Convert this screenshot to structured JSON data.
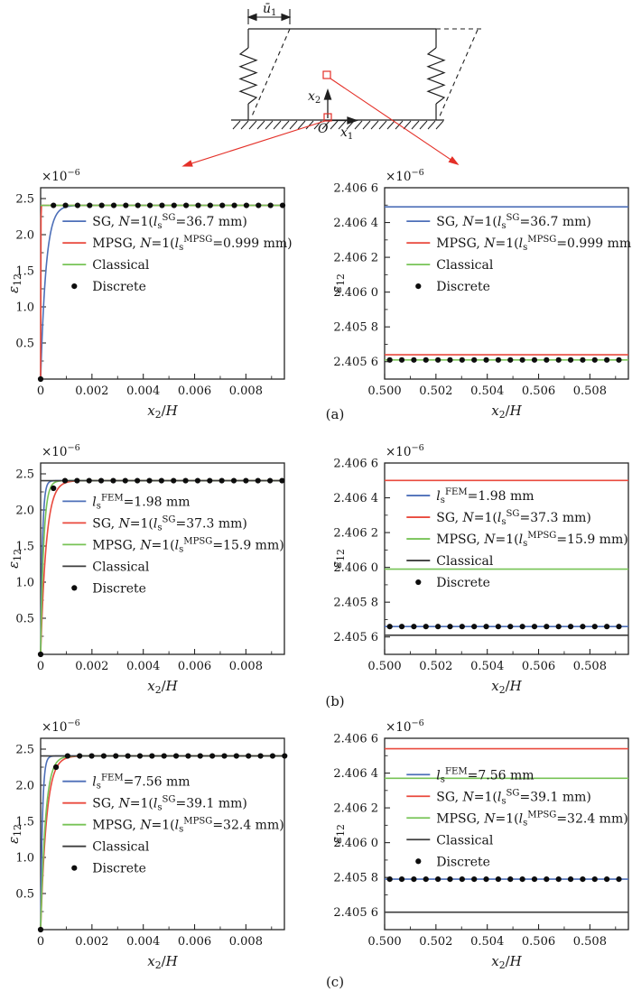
{
  "figure": {
    "captions": [
      "(a)",
      "(b)",
      "(c)"
    ],
    "colors": {
      "blue": "#4d6fb8",
      "red": "#e9493d",
      "green": "#77c356",
      "black": "#3d3d3d",
      "dot": "#0d0d0d",
      "axis": "#262626",
      "annotation_red": "#e43028"
    }
  },
  "schematic": {
    "labels": {
      "u1": "_ū_~1~",
      "x2": "_x_~2~",
      "x1": "_x_~1~",
      "origin": "_O_"
    }
  },
  "chart_data": [
    {
      "id": "a-left",
      "type": "line",
      "y_scale": "1e-6",
      "exponent": "×10^−6^",
      "xlabel": "_x_~2~/_H_",
      "ylabel": "_ε_~12~",
      "xlim": [
        0,
        0.0095
      ],
      "ylim": [
        0,
        2.65
      ],
      "xticks": [
        {
          "v": 0,
          "l": "0"
        },
        {
          "v": 0.002,
          "l": "0.002"
        },
        {
          "v": 0.004,
          "l": "0.004"
        },
        {
          "v": 0.006,
          "l": "0.006"
        },
        {
          "v": 0.008,
          "l": "0.008"
        }
      ],
      "yticks": [
        {
          "v": 0.5,
          "l": "0.5"
        },
        {
          "v": 1.0,
          "l": "1.0"
        },
        {
          "v": 1.5,
          "l": "1.5"
        },
        {
          "v": 2.0,
          "l": "2.0"
        },
        {
          "v": 2.5,
          "l": "2.5"
        }
      ],
      "series": [
        {
          "label": "SG, _N_=1(_l_~s~^SG^=36.7 mm)",
          "color": "blue",
          "kind": "exp",
          "plateau": 2.4056,
          "l": 0.00021
        },
        {
          "label": "MPSG, _N_=1(_l_~s~^MPSG^=0.999 mm)",
          "color": "red",
          "kind": "exp",
          "plateau": 2.4056,
          "l": 6e-06
        },
        {
          "label": "Classical",
          "color": "green",
          "kind": "hline",
          "y": 2.4056
        }
      ],
      "dots": {
        "label": "Discrete",
        "points": [
          [
            0,
            0
          ]
        ],
        "runs": [
          {
            "x0": 0.0005,
            "dx": 0.00047,
            "n": 20,
            "y": 2.4056
          }
        ]
      },
      "legend": {
        "fx": 0.09,
        "fy": 0.175
      }
    },
    {
      "id": "a-right",
      "type": "line",
      "y_scale": "1e-6",
      "exponent": "×10^−6^",
      "xlabel": "_x_~2~/_H_",
      "ylabel": "_ε_~12~",
      "xlim": [
        0.5,
        0.5095
      ],
      "ylim": [
        2.4055,
        2.4066
      ],
      "xticks": [
        {
          "v": 0.5,
          "l": "0.500"
        },
        {
          "v": 0.502,
          "l": "0.502"
        },
        {
          "v": 0.504,
          "l": "0.504"
        },
        {
          "v": 0.506,
          "l": "0.506"
        },
        {
          "v": 0.508,
          "l": "0.508"
        }
      ],
      "yticks": [
        {
          "v": 2.4056,
          "l": "2.405 6"
        },
        {
          "v": 2.4058,
          "l": "2.405 8"
        },
        {
          "v": 2.406,
          "l": "2.406 0"
        },
        {
          "v": 2.4062,
          "l": "2.406 2"
        },
        {
          "v": 2.4064,
          "l": "2.406 4"
        },
        {
          "v": 2.4066,
          "l": "2.406 6"
        }
      ],
      "series": [
        {
          "label": "SG, _N_=1(_l_~s~^SG^=36.7 mm)",
          "color": "blue",
          "kind": "hline",
          "y": 2.40649
        },
        {
          "label": "MPSG, _N_=1(_l_~s~^MPSG^=0.999 mm)",
          "color": "red",
          "kind": "hline",
          "y": 2.40564
        },
        {
          "label": "Classical",
          "color": "green",
          "kind": "hline",
          "y": 2.40561
        }
      ],
      "dots": {
        "label": "Discrete",
        "points": [],
        "runs": [
          {
            "x0": 0.5002,
            "dx": 0.00047,
            "n": 20,
            "y": 2.40561
          }
        ]
      },
      "legend": {
        "fx": 0.09,
        "fy": 0.175
      }
    },
    {
      "id": "b-left",
      "type": "line",
      "y_scale": "1e-6",
      "exponent": "×10^−6^",
      "xlabel": "_x_~2~/_H_",
      "ylabel": "_ε_~12~",
      "xlim": [
        0,
        0.0095
      ],
      "ylim": [
        0,
        2.65
      ],
      "xticks": [
        {
          "v": 0,
          "l": "0"
        },
        {
          "v": 0.002,
          "l": "0.002"
        },
        {
          "v": 0.004,
          "l": "0.004"
        },
        {
          "v": 0.006,
          "l": "0.006"
        },
        {
          "v": 0.008,
          "l": "0.008"
        }
      ],
      "yticks": [
        {
          "v": 0.5,
          "l": "0.5"
        },
        {
          "v": 1.0,
          "l": "1.0"
        },
        {
          "v": 1.5,
          "l": "1.5"
        },
        {
          "v": 2.0,
          "l": "2.0"
        },
        {
          "v": 2.5,
          "l": "2.5"
        }
      ],
      "series": [
        {
          "label": "_l_~s~^FEM^=1.98 mm",
          "color": "blue",
          "kind": "exp",
          "plateau": 2.4056,
          "l": 7e-05
        },
        {
          "label": "SG, _N_=1(_l_~s~^SG^=37.3 mm)",
          "color": "red",
          "kind": "exp",
          "plateau": 2.4056,
          "l": 0.00022
        },
        {
          "label": "MPSG, _N_=1(_l_~s~^MPSG^=15.9 mm)",
          "color": "green",
          "kind": "exp",
          "plateau": 2.4056,
          "l": 0.00012
        },
        {
          "label": "Classical",
          "color": "black",
          "kind": "hline",
          "y": 2.4056
        }
      ],
      "dots": {
        "label": "Discrete",
        "points": [
          [
            0,
            0
          ],
          [
            0.0005,
            2.3
          ]
        ],
        "runs": [
          {
            "x0": 0.00095,
            "dx": 0.00047,
            "n": 19,
            "y": 2.4056
          }
        ]
      },
      "legend": {
        "fx": 0.09,
        "fy": 0.2
      }
    },
    {
      "id": "b-right",
      "type": "line",
      "y_scale": "1e-6",
      "exponent": "×10^−6^",
      "xlabel": "_x_~2~/_H_",
      "ylabel": "_ε_~12~",
      "xlim": [
        0.5,
        0.5095
      ],
      "ylim": [
        2.4055,
        2.4066
      ],
      "xticks": [
        {
          "v": 0.5,
          "l": "0.500"
        },
        {
          "v": 0.502,
          "l": "0.502"
        },
        {
          "v": 0.504,
          "l": "0.504"
        },
        {
          "v": 0.506,
          "l": "0.506"
        },
        {
          "v": 0.508,
          "l": "0.508"
        }
      ],
      "yticks": [
        {
          "v": 2.4056,
          "l": "2.405 6"
        },
        {
          "v": 2.4058,
          "l": "2.405 8"
        },
        {
          "v": 2.406,
          "l": "2.406 0"
        },
        {
          "v": 2.4062,
          "l": "2.406 2"
        },
        {
          "v": 2.4064,
          "l": "2.406 4"
        },
        {
          "v": 2.4066,
          "l": "2.406 6"
        }
      ],
      "series": [
        {
          "label": "_l_~s~^FEM^=1.98 mm",
          "color": "blue",
          "kind": "hline",
          "y": 2.40566
        },
        {
          "label": "SG, _N_=1(_l_~s~^SG^=37.3 mm)",
          "color": "red",
          "kind": "hline",
          "y": 2.4065
        },
        {
          "label": "MPSG, _N_=1(_l_~s~^MPSG^=15.9 mm)",
          "color": "green",
          "kind": "hline",
          "y": 2.40599
        },
        {
          "label": "Classical",
          "color": "black",
          "kind": "hline",
          "y": 2.40561
        }
      ],
      "dots": {
        "label": "Discrete",
        "points": [],
        "runs": [
          {
            "x0": 0.5002,
            "dx": 0.00047,
            "n": 20,
            "y": 2.40566
          }
        ]
      },
      "legend": {
        "fx": 0.09,
        "fy": 0.17
      }
    },
    {
      "id": "c-left",
      "type": "line",
      "y_scale": "1e-6",
      "exponent": "×10^−6^",
      "xlabel": "_x_~2~/_H_",
      "ylabel": "_ε_~12~",
      "xlim": [
        0,
        0.0095
      ],
      "ylim": [
        0,
        2.65
      ],
      "xticks": [
        {
          "v": 0,
          "l": "0"
        },
        {
          "v": 0.002,
          "l": "0.002"
        },
        {
          "v": 0.004,
          "l": "0.004"
        },
        {
          "v": 0.006,
          "l": "0.006"
        },
        {
          "v": 0.008,
          "l": "0.008"
        }
      ],
      "yticks": [
        {
          "v": 0.5,
          "l": "0.5"
        },
        {
          "v": 1.0,
          "l": "1.0"
        },
        {
          "v": 1.5,
          "l": "1.5"
        },
        {
          "v": 2.0,
          "l": "2.0"
        },
        {
          "v": 2.5,
          "l": "2.5"
        }
      ],
      "series": [
        {
          "label": "_l_~s~^FEM^=7.56 mm",
          "color": "blue",
          "kind": "exp",
          "plateau": 2.4056,
          "l": 7e-05
        },
        {
          "label": "SG, _N_=1(_l_~s~^SG^=39.1 mm)",
          "color": "red",
          "kind": "exp",
          "plateau": 2.4056,
          "l": 0.00023
        },
        {
          "label": "MPSG, _N_=1(_l_~s~^MPSG^=32.4 mm)",
          "color": "green",
          "kind": "exp",
          "plateau": 2.4056,
          "l": 0.00019
        },
        {
          "label": "Classical",
          "color": "black",
          "kind": "hline",
          "y": 2.4056
        }
      ],
      "dots": {
        "label": "Discrete",
        "points": [
          [
            0,
            0
          ],
          [
            0.0006,
            2.25
          ]
        ],
        "runs": [
          {
            "x0": 0.00105,
            "dx": 0.00047,
            "n": 19,
            "y": 2.4056
          }
        ]
      },
      "legend": {
        "fx": 0.09,
        "fy": 0.225
      }
    },
    {
      "id": "c-right",
      "type": "line",
      "y_scale": "1e-6",
      "exponent": "×10^−6^",
      "xlabel": "_x_~2~/_H_",
      "ylabel": "_ε_~12~",
      "xlim": [
        0.5,
        0.5095
      ],
      "ylim": [
        2.4055,
        2.4066
      ],
      "xticks": [
        {
          "v": 0.5,
          "l": "0.500"
        },
        {
          "v": 0.502,
          "l": "0.502"
        },
        {
          "v": 0.504,
          "l": "0.504"
        },
        {
          "v": 0.506,
          "l": "0.506"
        },
        {
          "v": 0.508,
          "l": "0.508"
        }
      ],
      "yticks": [
        {
          "v": 2.4056,
          "l": "2.405 6"
        },
        {
          "v": 2.4058,
          "l": "2.405 8"
        },
        {
          "v": 2.406,
          "l": "2.406 0"
        },
        {
          "v": 2.4062,
          "l": "2.406 2"
        },
        {
          "v": 2.4064,
          "l": "2.406 4"
        },
        {
          "v": 2.4066,
          "l": "2.406 6"
        }
      ],
      "series": [
        {
          "label": "_l_~s~^FEM^=7.56 mm",
          "color": "blue",
          "kind": "hline",
          "y": 2.40579
        },
        {
          "label": "SG, _N_=1(_l_~s~^SG^=39.1 mm)",
          "color": "red",
          "kind": "hline",
          "y": 2.40654
        },
        {
          "label": "MPSG, _N_=1(_l_~s~^MPSG^=32.4 mm)",
          "color": "green",
          "kind": "hline",
          "y": 2.40637
        },
        {
          "label": "Classical",
          "color": "black",
          "kind": "hline",
          "y": 2.4056
        }
      ],
      "dots": {
        "label": "Discrete",
        "points": [],
        "runs": [
          {
            "x0": 0.5002,
            "dx": 0.00047,
            "n": 20,
            "y": 2.40579
          }
        ]
      },
      "legend": {
        "fx": 0.09,
        "fy": 0.19
      }
    }
  ]
}
